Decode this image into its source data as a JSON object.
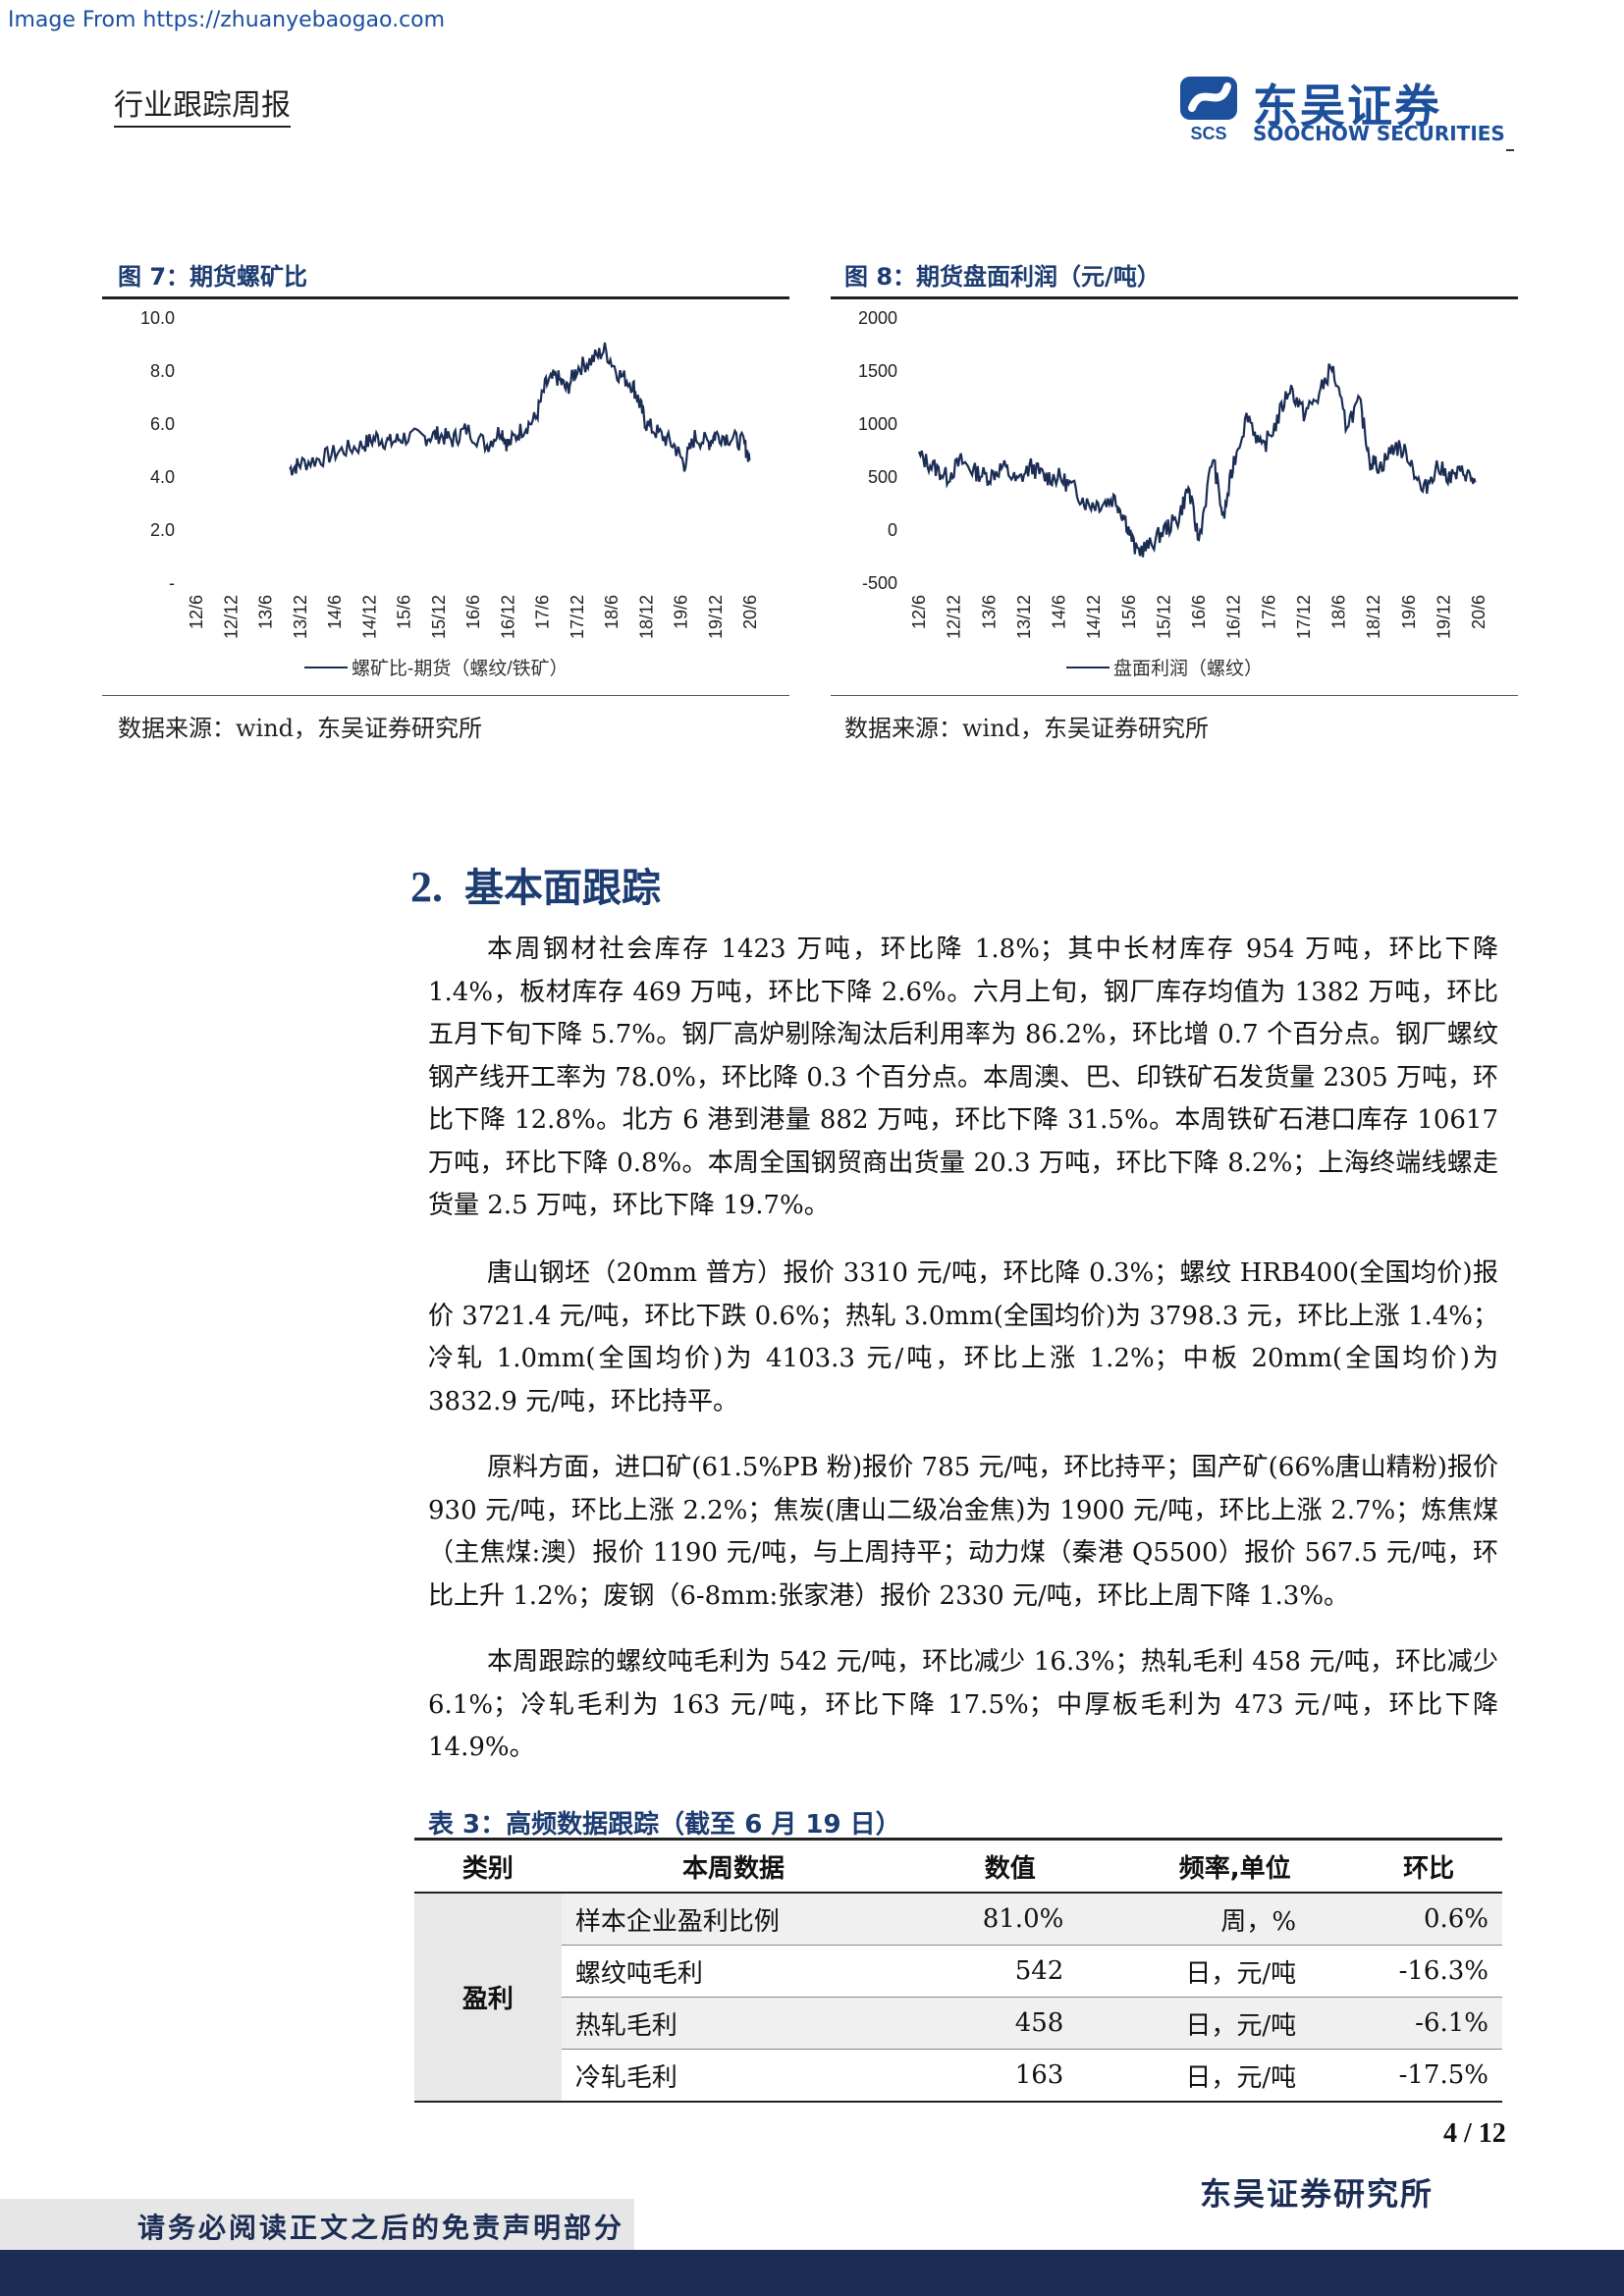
{
  "watermark": "Image From https://zhuanyebaogao.com",
  "header": {
    "report_type": "行业跟踪周报",
    "logo_cn": "东吴证券",
    "logo_en": "SOOCHOW SECURITIES",
    "logo_mark": "SCS"
  },
  "figures": [
    {
      "title": "图 7：期货螺矿比",
      "source": "数据来源：wind，东吴证券研究所"
    },
    {
      "title": "图 8：期货盘面利润（元/吨）",
      "source": "数据来源：wind，东吴证券研究所"
    }
  ],
  "chart_data": [
    {
      "type": "line",
      "title": "图 7：期货螺矿比",
      "y_ticks": [
        "10.0",
        "8.0",
        "6.0",
        "4.0",
        "2.0",
        "-"
      ],
      "ylim": [
        0,
        10
      ],
      "x_ticks": [
        "12/6",
        "12/12",
        "13/6",
        "13/12",
        "14/6",
        "14/12",
        "15/6",
        "15/12",
        "16/6",
        "16/12",
        "17/6",
        "17/12",
        "18/6",
        "18/12",
        "19/6",
        "19/12",
        "20/6"
      ],
      "series": [
        {
          "name": "螺矿比-期货（螺纹/铁矿）",
          "x": [
            2013.85,
            2014.0,
            2014.3,
            2014.6,
            2014.9,
            2015.1,
            2015.3,
            2015.5,
            2015.8,
            2016.0,
            2016.2,
            2016.4,
            2016.7,
            2016.9,
            2017.0,
            2017.2,
            2017.4,
            2017.55,
            2017.7,
            2017.85,
            2018.0,
            2018.2,
            2018.4,
            2018.6,
            2018.8,
            2018.9,
            2019.0,
            2019.2,
            2019.4,
            2019.55,
            2019.7,
            2019.9,
            2020.0,
            2020.2,
            2020.4,
            2020.5
          ],
          "values": [
            4.3,
            4.5,
            4.7,
            5.0,
            5.2,
            5.5,
            5.3,
            5.5,
            5.5,
            5.6,
            5.4,
            5.8,
            5.2,
            5.8,
            5.2,
            5.8,
            6.2,
            7.5,
            7.8,
            7.3,
            8.1,
            8.4,
            8.8,
            7.9,
            7.5,
            6.8,
            6.0,
            5.6,
            5.2,
            4.5,
            5.5,
            5.3,
            5.6,
            5.5,
            5.3,
            4.7
          ]
        }
      ]
    },
    {
      "type": "line",
      "title": "图 8：期货盘面利润（元/吨）",
      "y_ticks": [
        "2000",
        "1500",
        "1000",
        "500",
        "0",
        "-500"
      ],
      "ylim": [
        -500,
        2000
      ],
      "x_ticks": [
        "12/6",
        "12/12",
        "13/6",
        "13/12",
        "14/6",
        "14/12",
        "15/6",
        "15/12",
        "16/6",
        "16/12",
        "17/6",
        "17/12",
        "18/6",
        "18/12",
        "19/6",
        "19/12",
        "20/6"
      ],
      "series": [
        {
          "name": "盘面利润（螺纹）",
          "x": [
            2012.5,
            2012.7,
            2012.9,
            2013.1,
            2013.3,
            2013.5,
            2013.7,
            2013.9,
            2014.1,
            2014.3,
            2014.5,
            2014.7,
            2014.9,
            2015.1,
            2015.3,
            2015.45,
            2015.6,
            2015.8,
            2016.0,
            2016.2,
            2016.35,
            2016.5,
            2016.7,
            2016.85,
            2017.0,
            2017.2,
            2017.4,
            2017.6,
            2017.8,
            2018.0,
            2018.2,
            2018.4,
            2018.6,
            2018.8,
            2018.95,
            2019.1,
            2019.3,
            2019.5,
            2019.7,
            2019.9,
            2020.1,
            2020.3,
            2020.45
          ],
          "values": [
            700,
            600,
            500,
            650,
            550,
            500,
            600,
            450,
            600,
            500,
            500,
            400,
            250,
            250,
            300,
            100,
            -200,
            -150,
            0,
            100,
            400,
            -100,
            700,
            100,
            650,
            1100,
            750,
            1000,
            1350,
            1100,
            1250,
            1550,
            1000,
            1200,
            650,
            600,
            800,
            700,
            350,
            600,
            500,
            550,
            450
          ]
        }
      ]
    }
  ],
  "section": {
    "number": "2.",
    "title": "基本面跟踪",
    "paragraphs": [
      "本周钢材社会库存 1423 万吨，环比降 1.8%；其中长材库存 954 万吨，环比下降 1.4%，板材库存 469 万吨，环比下降 2.6%。六月上旬，钢厂库存均值为 1382 万吨，环比五月下旬下降 5.7%。钢厂高炉剔除淘汰后利用率为 86.2%，环比增 0.7 个百分点。钢厂螺纹钢产线开工率为 78.0%，环比降 0.3 个百分点。本周澳、巴、印铁矿石发货量 2305 万吨，环比下降 12.8%。北方 6 港到港量 882 万吨，环比下降 31.5%。本周铁矿石港口库存 10617 万吨，环比下降 0.8%。本周全国钢贸商出货量 20.3 万吨，环比下降 8.2%；上海终端线螺走货量 2.5 万吨，环比下降 19.7%。",
      "唐山钢坯（20mm 普方）报价 3310 元/吨，环比降 0.3%；螺纹 HRB400(全国均价)报价 3721.4 元/吨，环比下跌 0.6%；热轧 3.0mm(全国均价)为 3798.3 元，环比上涨 1.4%；冷轧 1.0mm(全国均价)为 4103.3 元/吨，环比上涨 1.2%；中板 20mm(全国均价)为 3832.9 元/吨，环比持平。",
      "原料方面，进口矿(61.5%PB 粉)报价 785 元/吨，环比持平；国产矿(66%唐山精粉)报价 930 元/吨，环比上涨 2.2%；焦炭(唐山二级冶金焦)为 1900 元/吨，环比上涨 2.7%；炼焦煤（主焦煤:澳）报价 1190 元/吨，与上周持平；动力煤（秦港 Q5500）报价 567.5 元/吨，环比上升 1.2%；废钢（6-8mm:张家港）报价 2330 元/吨，环比上周下降 1.3%。",
      "本周跟踪的螺纹吨毛利为 542 元/吨，环比减少 16.3%；热轧毛利 458 元/吨，环比减少 6.1%；冷轧毛利为 163 元/吨，环比下降 17.5%；中厚板毛利为 473 元/吨，环比下降 14.9%。"
    ]
  },
  "table": {
    "title": "表 3：高频数据跟踪（截至 6 月 19 日）",
    "headers": [
      "类别",
      "本周数据",
      "数值",
      "频率,单位",
      "环比"
    ],
    "category": "盈利",
    "rows": [
      {
        "item": "样本企业盈利比例",
        "value": "81.0%",
        "freq": "周，%",
        "change": "0.6%"
      },
      {
        "item": "螺纹吨毛利",
        "value": "542",
        "freq": "日，元/吨",
        "change": "-16.3%"
      },
      {
        "item": "热轧毛利",
        "value": "458",
        "freq": "日，元/吨",
        "change": "-6.1%"
      },
      {
        "item": "冷轧毛利",
        "value": "163",
        "freq": "日，元/吨",
        "change": "-17.5%"
      }
    ]
  },
  "footer": {
    "page": "4 / 12",
    "institute": "东吴证券研究所",
    "disclaimer": "请务必阅读正文之后的免责声明部分"
  }
}
